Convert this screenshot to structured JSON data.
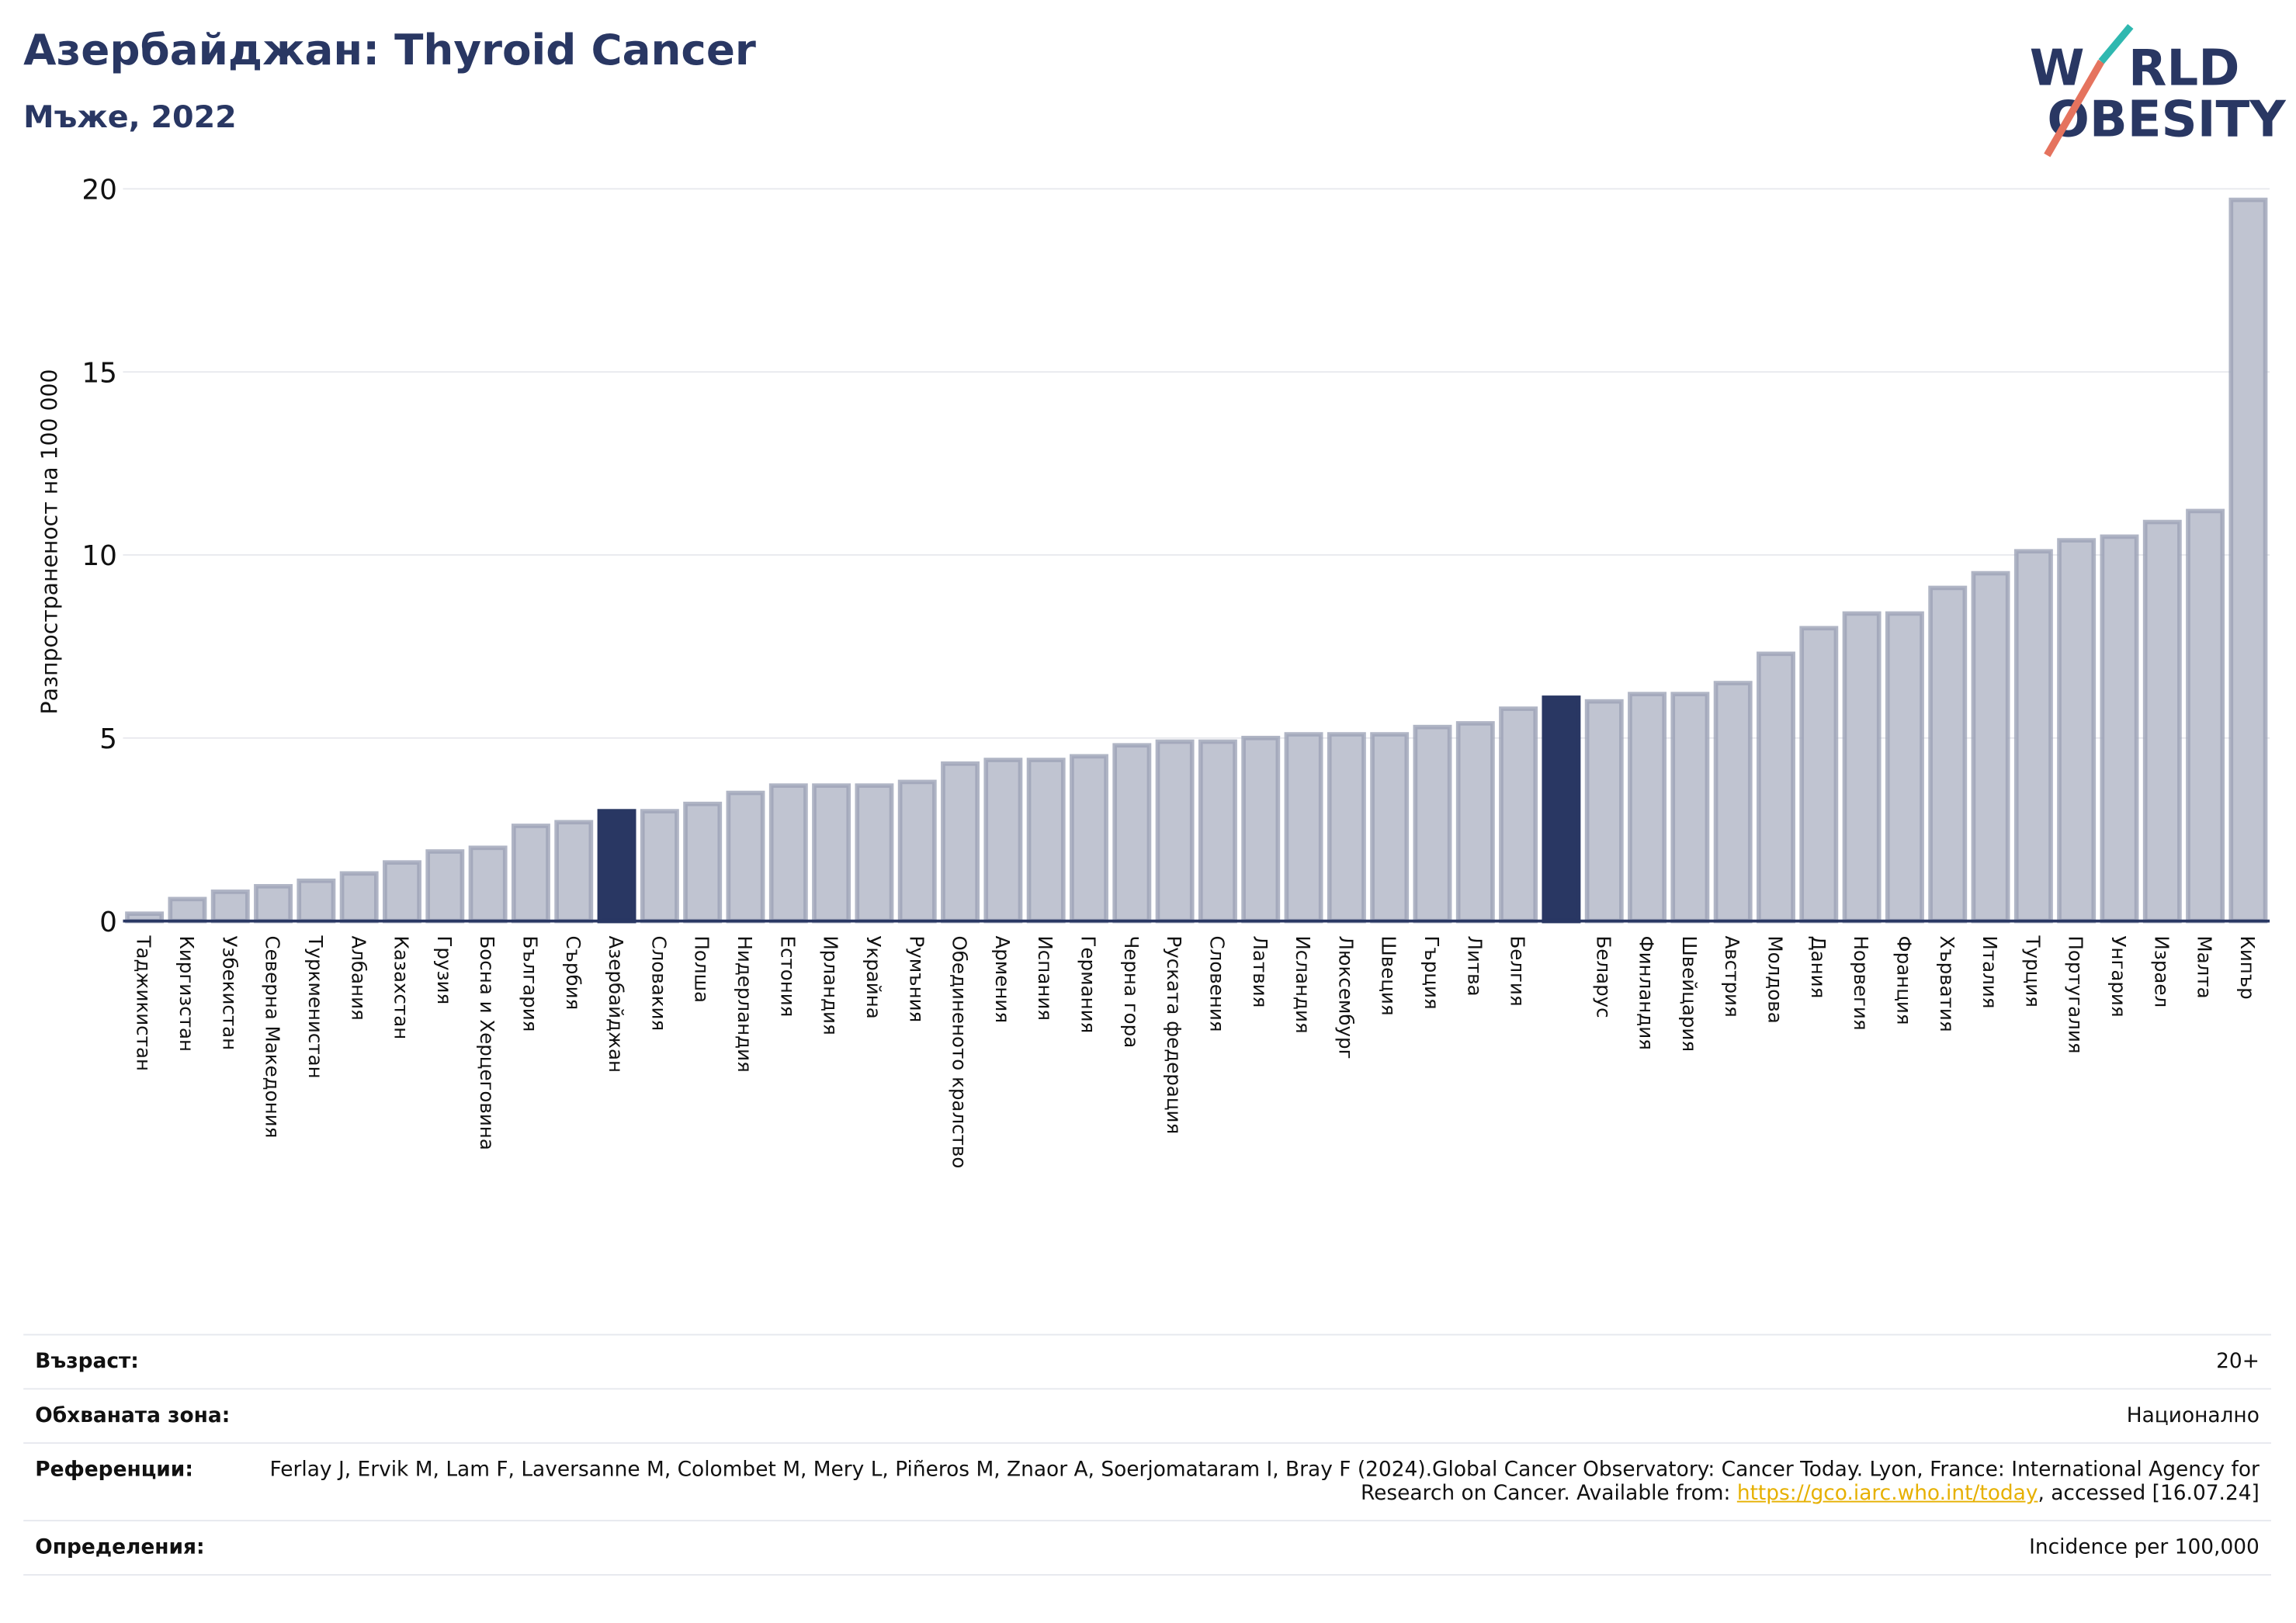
{
  "chart_data": {
    "type": "bar",
    "title": "Азербайджан: Thyroid Cancer",
    "subtitle": "Мъже, 2022",
    "y_label": "Разпространеност  на 100 000",
    "categories": [
      "Таджикистан",
      "Киргизстан",
      "Узбекистан",
      "Северна Македония",
      "Туркменистан",
      "Албания",
      "Казахстан",
      "Грузия",
      "Босна и Херцеговина",
      "България",
      "Сърбия",
      "Азербайджан",
      "Словакия",
      "Полша",
      "Нидерландия",
      "Естония",
      "Ирландия",
      "Украйна",
      "Румъния",
      "Обединеното кралство",
      "Армения",
      "Испания",
      "Германия",
      "Черна гора",
      "Руската федерация",
      "Словения",
      "Латвия",
      "Исландия",
      "Люксембург",
      "Швеция",
      "Гърция",
      "Литва",
      "Белгия",
      null,
      "Беларус",
      "Финландия",
      "Швейцария",
      "Австрия",
      "Молдова",
      "Дания",
      "Норвегия",
      "Франция",
      "Хърватия",
      "Италия",
      "Турция",
      "Португалия",
      "Унгария",
      "Израел",
      "Малта",
      "Кипър"
    ],
    "values": [
      0.2,
      0.6,
      0.8,
      0.95,
      1.1,
      1.3,
      1.6,
      1.9,
      2.0,
      2.6,
      2.7,
      3.0,
      3.0,
      3.2,
      3.5,
      3.7,
      3.7,
      3.7,
      3.8,
      4.3,
      4.4,
      4.4,
      4.5,
      4.8,
      4.9,
      4.9,
      5.0,
      5.1,
      5.1,
      5.1,
      5.3,
      5.4,
      5.8,
      6.1,
      6.0,
      6.2,
      6.2,
      6.5,
      7.3,
      8.0,
      8.4,
      8.4,
      9.1,
      9.5,
      10.1,
      10.4,
      10.5,
      10.9,
      11.2,
      19.7
    ],
    "color": "#c0c4d1",
    "highlight_color": "#293763",
    "highlight": [
      11,
      33
    ],
    "ylim": [
      0,
      20
    ],
    "yticks": [
      0,
      5,
      10,
      15,
      20
    ],
    "grid": true
  },
  "logo": [
    "W",
    "RLD",
    "OBESITY"
  ],
  "footer": {
    "rows": [
      {
        "label": "Възраст:",
        "value": "20+"
      },
      {
        "label": "Обхваната зона:",
        "value": "Национално"
      },
      {
        "label": "Референции:",
        "value": [
          "Ferlay J, Ervik M, Lam F, Laversanne M, Colombet M, Mery L, Piñeros M, Znaor A, Soerjomataram I, Bray F (2024).Global Cancer Observatory: Cancer Today. Lyon, France: International Agency for Research on Cancer. Available from: ",
          "https://gco.iarc.who.int/today",
          ", accessed [16.07.24]"
        ]
      },
      {
        "label": "Определения:",
        "value": "Incidence per 100,000"
      }
    ]
  }
}
